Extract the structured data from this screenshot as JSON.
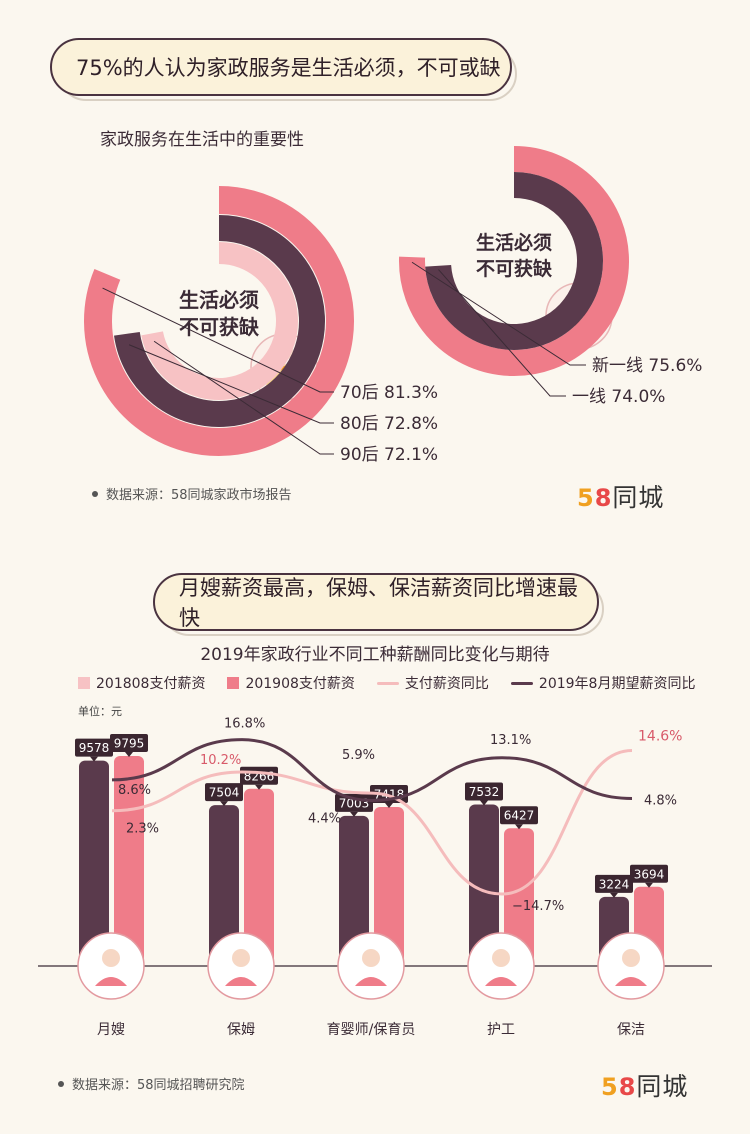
{
  "section1": {
    "banner": "75%的人认为家政服务是生活必须，不可或缺",
    "subtitle": "家政服务在生活中的重要性",
    "center_left": [
      "生活必须",
      "不可获缺"
    ],
    "center_right": [
      "生活必须",
      "不可获缺"
    ],
    "source": "数据来源：58同城家政市场报告"
  },
  "section2": {
    "banner": "月嫂薪资最高，保姆、保洁薪资同比增速最快",
    "unit": "单位：元",
    "source": "数据来源：58同城招聘研究院"
  },
  "logo": {
    "d5": "5",
    "d8": "8",
    "cn": "同城"
  },
  "colors": {
    "dark": "#5a3a4c",
    "pink": "#ef7c89",
    "light_pink": "#f7c2c4",
    "line_light": "#f5bcbc",
    "line_dark": "#5a3a4c",
    "accent_text": "#d85a6a"
  },
  "chart_data": [
    {
      "type": "donut",
      "title": "家政服务在生活中的重要性",
      "categories": [
        "70后",
        "80后",
        "90后"
      ],
      "values": [
        81.3,
        72.8,
        72.1
      ],
      "labels": [
        "70后  81.3%",
        "80后  72.8%",
        "90后  72.1%"
      ],
      "unit": "%"
    },
    {
      "type": "donut",
      "categories": [
        "新一线",
        "一线"
      ],
      "values": [
        75.6,
        74.0
      ],
      "labels": [
        "新一线  75.6%",
        "一线  74.0%"
      ],
      "unit": "%"
    },
    {
      "type": "bar",
      "title": "2019年家政行业不同工种薪酬同比变化与期待",
      "categories": [
        "月嫂",
        "保姆",
        "育婴师/保育员",
        "护工",
        "保洁"
      ],
      "series": [
        {
          "name": "201808支付薪资",
          "values": [
            9578,
            7504,
            7003,
            7532,
            3224
          ]
        },
        {
          "name": "201908支付薪资",
          "values": [
            9795,
            8266,
            7418,
            6427,
            3694
          ]
        },
        {
          "name": "支付薪资同比",
          "values": [
            2.3,
            10.2,
            5.9,
            -14.7,
            14.6
          ],
          "labels": [
            "2.3%",
            "10.2%",
            "5.9%",
            "−14.7%",
            "14.6%"
          ]
        },
        {
          "name": "2019年8月期望薪资同比",
          "values": [
            8.6,
            16.8,
            4.4,
            13.1,
            4.8
          ],
          "labels": [
            "8.6%",
            "16.8%",
            "4.4%",
            "13.1%",
            "4.8%"
          ]
        }
      ],
      "unit": "元",
      "ylim": [
        0,
        11000
      ]
    }
  ]
}
